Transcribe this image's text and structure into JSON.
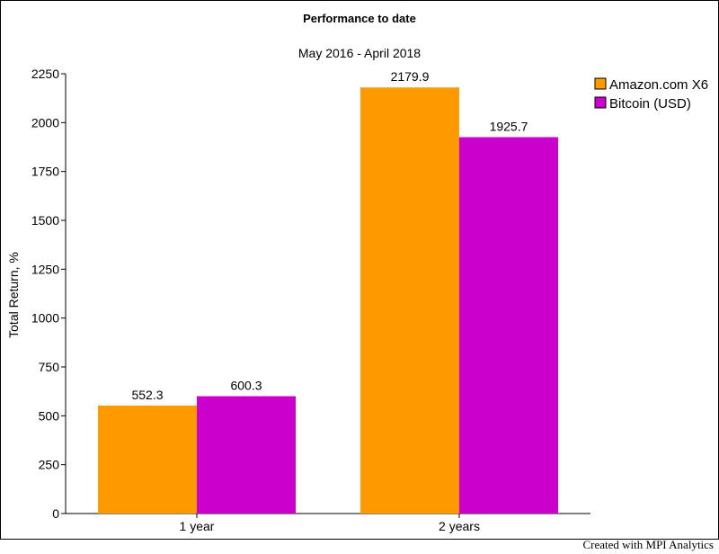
{
  "chart_data": {
    "type": "bar",
    "title": "Performance to date",
    "subtitle": "May 2016 - April 2018",
    "ylabel": "Total Return, %",
    "xlabel": "",
    "categories": [
      "1 year",
      "2 years"
    ],
    "series": [
      {
        "name": "Amazon.com X6",
        "values": [
          552.3,
          2179.9
        ],
        "color": "#FF9900"
      },
      {
        "name": "Bitcoin (USD)",
        "values": [
          600.3,
          1925.7
        ],
        "color": "#CC00CC"
      }
    ],
    "value_labels": [
      [
        "552.3",
        "2179.9"
      ],
      [
        "600.3",
        "1925.7"
      ]
    ],
    "ylim": [
      0,
      2250
    ],
    "yticks": [
      0,
      250,
      500,
      750,
      1000,
      1250,
      1500,
      1750,
      2000,
      2250
    ],
    "grid": false,
    "legend": "top-right"
  },
  "footer": {
    "credit": "Created with MPI Analytics"
  }
}
